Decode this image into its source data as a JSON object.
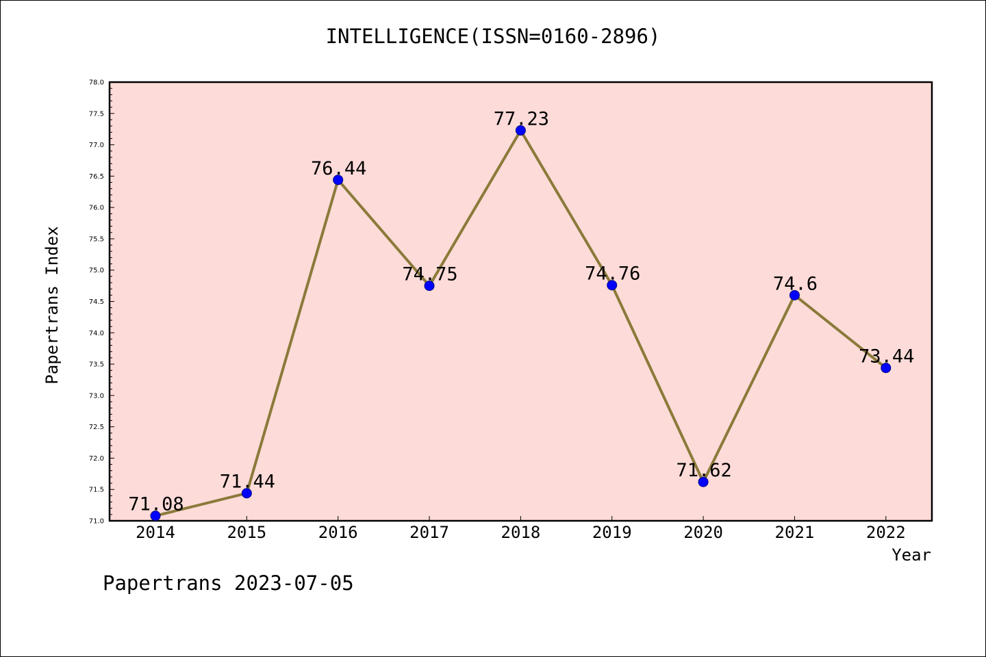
{
  "chart_data": {
    "type": "line",
    "title": "INTELLIGENCE(ISSN=0160-2896)",
    "xlabel": "Year",
    "ylabel": "Papertrans Index",
    "categories": [
      "2014",
      "2015",
      "2016",
      "2017",
      "2018",
      "2019",
      "2020",
      "2021",
      "2022"
    ],
    "series": [
      {
        "values": [
          71.08,
          71.44,
          76.44,
          74.75,
          77.23,
          74.76,
          71.62,
          74.6,
          73.44
        ]
      }
    ],
    "data_labels": [
      "71.08",
      "71.44",
      "76.44",
      "74.75",
      "77.23",
      "74.76",
      "71.62",
      "74.6",
      "73.44"
    ],
    "ylim": [
      71.0,
      78.0
    ],
    "yticks": [
      "71.0",
      "71.5",
      "72.0",
      "72.5",
      "73.0",
      "73.5",
      "74.0",
      "74.5",
      "75.0",
      "75.5",
      "76.0",
      "76.5",
      "77.0",
      "77.5",
      "78.0"
    ],
    "grid": false,
    "colors": {
      "plot_background": "#fddbd8",
      "line": "#8b7a3a",
      "marker": "#0000ff",
      "marker_edge": "#000080"
    }
  },
  "footer": "Papertrans 2023-07-05"
}
